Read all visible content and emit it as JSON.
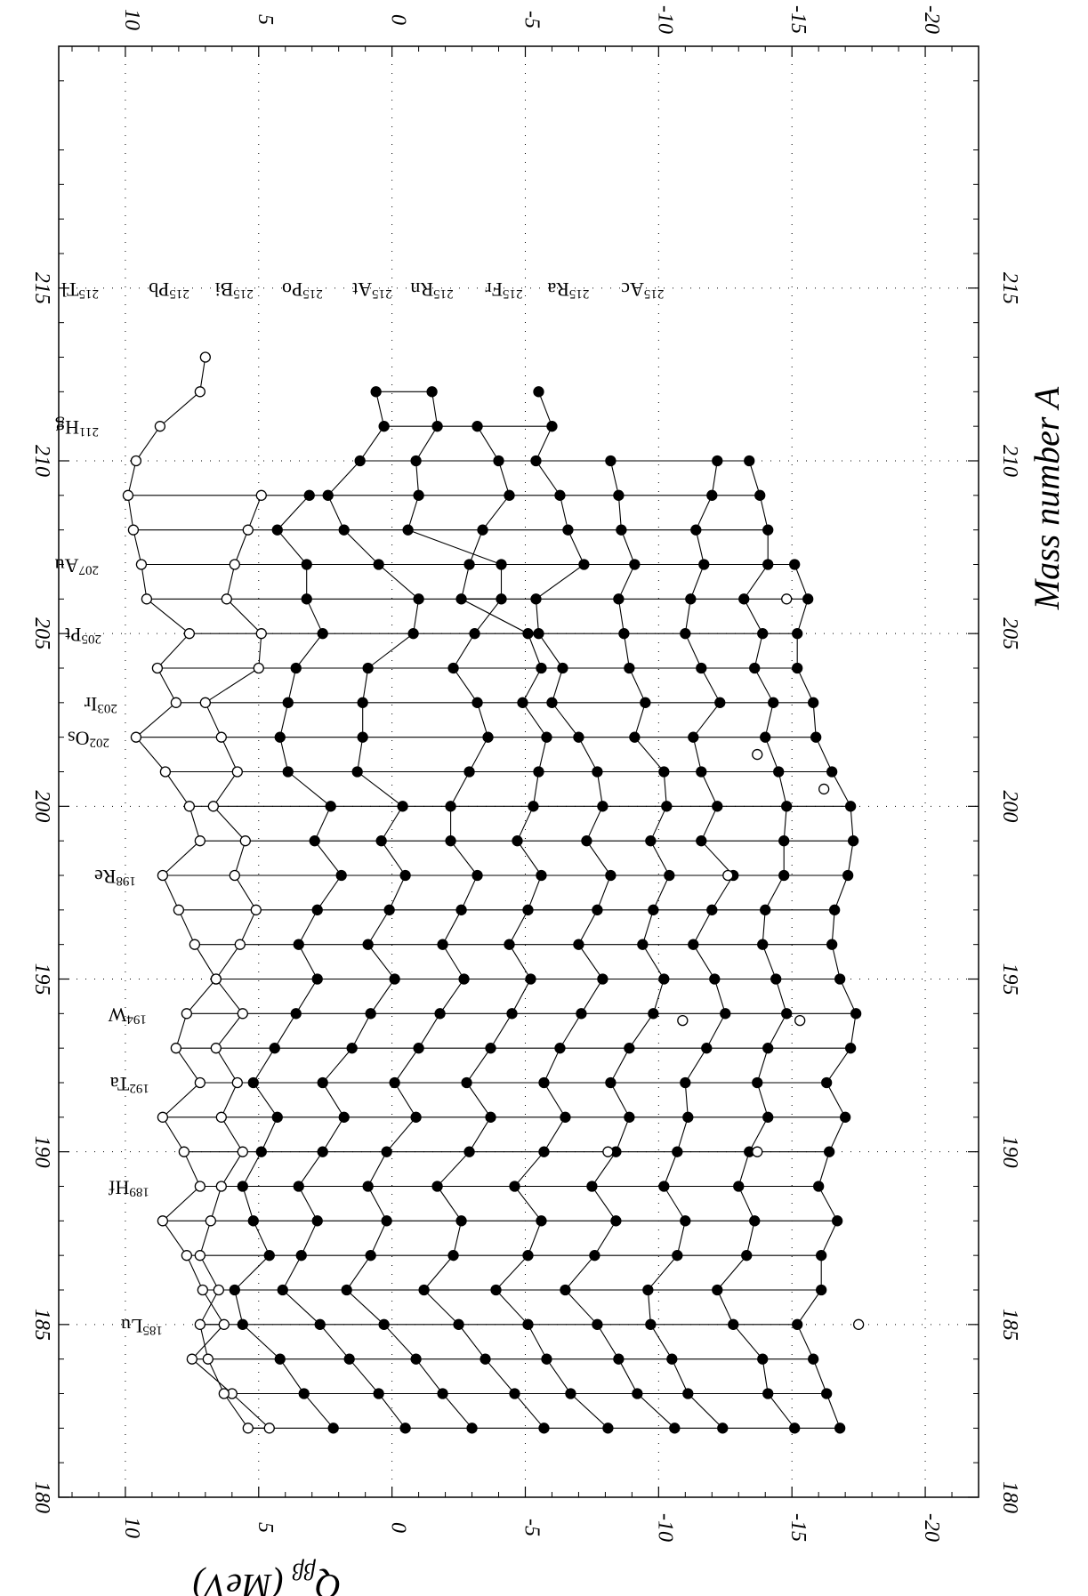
{
  "chart_data": {
    "type": "scatter",
    "title": "",
    "xlabel": "Mass number A",
    "ylabel_symbol": "Q",
    "ylabel_subscript": "ββ",
    "ylabel_unit": " (MeV)",
    "xlim": [
      180,
      222
    ],
    "ylim": [
      -22,
      12.5
    ],
    "x_ticks": [
      180,
      185,
      190,
      195,
      200,
      205,
      210,
      215
    ],
    "y_ticks": [
      10,
      5,
      0,
      -5,
      -10,
      -15,
      -20
    ],
    "y_tick_labels": [
      "10",
      "5",
      "0",
      "-5",
      "-10",
      "-15",
      "-20"
    ],
    "grid": "dotted",
    "orientation": "rotated 90° clockwise",
    "chain_start": 182,
    "chain_end": 216,
    "series": [
      {
        "filled": false,
        "values": [
          4.6,
          6.0,
          7.5,
          6.3,
          7.1,
          7.7,
          8.6,
          7.2,
          7.8,
          8.6,
          7.2,
          8.1,
          7.7,
          6.6,
          7.4,
          8.0,
          8.6,
          7.2,
          7.6,
          8.5,
          9.6,
          8.1,
          8.8,
          7.6,
          9.2,
          9.4,
          9.7,
          9.9,
          9.6,
          8.7,
          7.2,
          7.0
        ]
      },
      {
        "filled": false,
        "values": [
          5.4,
          6.3,
          6.9,
          7.2,
          6.5,
          7.2,
          6.8,
          6.4,
          5.6,
          6.4,
          5.8,
          6.6,
          5.6,
          6.6,
          5.7,
          5.1,
          5.9,
          5.5,
          6.7,
          5.8,
          6.4,
          7.0,
          5.0,
          4.9,
          6.2,
          5.9,
          5.4,
          4.9
        ]
      },
      {
        "filled": true,
        "values": [
          2.2,
          3.3,
          4.2,
          5.6,
          5.9,
          4.6,
          5.2,
          5.6,
          4.9,
          4.3,
          5.2,
          4.4,
          3.6,
          2.8,
          3.5,
          2.8,
          1.9,
          2.9,
          2.3,
          3.9,
          4.2,
          3.9,
          3.6,
          2.6,
          3.2,
          3.2,
          4.3,
          3.1
        ]
      },
      {
        "filled": true,
        "values": [
          -0.5,
          0.5,
          1.6,
          2.7,
          4.1,
          3.4,
          2.8,
          3.5,
          2.6,
          1.8,
          2.6,
          1.5,
          0.8,
          -0.1,
          0.9,
          0.1,
          -0.5,
          0.4,
          -0.4,
          1.3,
          1.1,
          1.1,
          0.9,
          -0.8,
          -1.0,
          0.5,
          1.8,
          2.4,
          1.2,
          0.3,
          0.6
        ]
      },
      {
        "filled": true,
        "values": [
          -3.0,
          -1.9,
          -0.9,
          0.3,
          1.7,
          0.8,
          0.2,
          0.9,
          0.2,
          -0.9,
          -0.1,
          -1.0,
          -1.8,
          -2.7,
          -1.9,
          -2.6,
          -3.2,
          -2.2,
          -2.2,
          -2.9,
          -3.6,
          -3.2,
          -2.3,
          -3.1,
          -4.1,
          -4.1,
          -0.6,
          -1.0,
          -0.9,
          -1.7,
          -1.5
        ]
      },
      {
        "filled": true,
        "values": [
          -5.7,
          -4.6,
          -3.5,
          -2.5,
          -1.2,
          -2.3,
          -2.6,
          -1.7,
          -2.9,
          -3.7,
          -2.8,
          -3.7,
          -4.5,
          -5.2,
          -4.4,
          -5.1,
          -5.6,
          -4.7,
          -5.3,
          -5.5,
          -5.8,
          -4.9,
          -5.6,
          -5.1,
          -2.6,
          -2.9,
          -3.4,
          -4.4,
          -4.0,
          -3.2
        ]
      },
      {
        "filled": true,
        "values": [
          -8.1,
          -6.7,
          -5.8,
          -5.1,
          -3.9,
          -5.1,
          -5.6,
          -4.6,
          -5.7,
          -6.5,
          -5.7,
          -6.3,
          -7.1,
          -7.9,
          -7.0,
          -7.7,
          -8.2,
          -7.3,
          -7.9,
          -7.7,
          -7.0,
          -6.0,
          -6.4,
          -5.5,
          -5.4,
          -7.2,
          -6.6,
          -6.3,
          -5.4,
          -6.0,
          -5.5
        ]
      },
      {
        "filled": true,
        "values": [
          -10.6,
          -9.2,
          -8.5,
          -7.7,
          -6.5,
          -7.6,
          -8.4,
          -7.5,
          -8.4,
          -8.9,
          -8.2,
          -8.9,
          -9.8,
          -10.2,
          -9.4,
          -9.8,
          -10.4,
          -9.7,
          -10.3,
          -10.2,
          -9.1,
          -9.5,
          -8.9,
          -8.7,
          -8.5,
          -9.1,
          -8.6,
          -8.5,
          -8.2
        ]
      },
      {
        "filled": true,
        "values": [
          -12.4,
          -11.1,
          -10.5,
          -9.7,
          -9.6,
          -10.7,
          -11.0,
          -10.2,
          -10.7,
          -11.1,
          -11.0,
          -11.8,
          -12.5,
          -12.1,
          -11.3,
          -12.0,
          -12.8,
          -11.6,
          -12.2,
          -11.6,
          -11.3,
          -12.3,
          -11.6,
          -11.0,
          -11.2,
          -11.7,
          -11.4,
          -12.0,
          -12.2
        ]
      },
      {
        "filled": true,
        "values": [
          -15.1,
          -14.1,
          -13.9,
          -12.8,
          -12.2,
          -13.3,
          -13.6,
          -13.0,
          -13.4,
          -14.1,
          -13.7,
          -14.1,
          -14.8,
          -14.4,
          -13.9,
          -14.0,
          -14.7,
          -14.7,
          -14.8,
          -14.5,
          -14.0,
          -14.3,
          -13.6,
          -13.9,
          -13.2,
          -14.1,
          -14.1,
          -13.8,
          -13.4
        ]
      },
      {
        "filled": true,
        "values": [
          -16.8,
          -16.3,
          -15.8,
          -15.2,
          -16.1,
          -16.1,
          -16.7,
          -16.0,
          -16.4,
          -17.0,
          -16.3,
          -17.2,
          -17.4,
          -16.8,
          -16.5,
          -16.6,
          -17.1,
          -17.3,
          -17.2,
          -16.5,
          -15.9,
          -15.8,
          -15.2,
          -15.2,
          -15.6,
          -15.1
        ]
      }
    ],
    "markers": {
      "series_index": [
        0,
        0,
        1,
        1,
        2,
        2,
        3,
        3,
        4,
        4,
        5,
        5,
        6,
        6,
        7,
        7,
        8,
        8,
        9,
        9,
        10,
        10
      ],
      "x": [
        182,
        183,
        182,
        183,
        184,
        185,
        186,
        187,
        188,
        189,
        190,
        191,
        192,
        193,
        194,
        195,
        196,
        197,
        198,
        199,
        200,
        201
      ]
    },
    "hollow_points": [
      {
        "x": 201.5,
        "y": -13.7
      },
      {
        "x": 200.5,
        "y": -16.2
      },
      {
        "x": 198.0,
        "y": -12.6
      },
      {
        "x": 193.8,
        "y": -10.9
      },
      {
        "x": 193.8,
        "y": -15.3
      },
      {
        "x": 190.0,
        "y": -8.1
      },
      {
        "x": 190.0,
        "y": -13.7
      },
      {
        "x": 185.0,
        "y": -17.5
      },
      {
        "x": 206.0,
        "y": -14.8
      }
    ],
    "isotope_labels": [
      {
        "mass": "185",
        "symbol": "Lu"
      },
      {
        "mass": "189",
        "symbol": "Hf"
      },
      {
        "mass": "192",
        "symbol": "Ta"
      },
      {
        "mass": "194",
        "symbol": "W"
      },
      {
        "mass": "198",
        "symbol": "Re"
      },
      {
        "mass": "202",
        "symbol": "Os"
      },
      {
        "mass": "203",
        "symbol": "Ir"
      },
      {
        "mass": "205",
        "symbol": "Pt"
      },
      {
        "mass": "207",
        "symbol": "Au"
      },
      {
        "mass": "211",
        "symbol": "Hg"
      },
      {
        "mass": "215",
        "symbol": "Tl"
      },
      {
        "mass": "215",
        "symbol": "Pb"
      },
      {
        "mass": "215",
        "symbol": "Bi"
      },
      {
        "mass": "215",
        "symbol": "Po"
      },
      {
        "mass": "215",
        "symbol": "At"
      },
      {
        "mass": "215",
        "symbol": "Rn"
      },
      {
        "mass": "215",
        "symbol": "Fr"
      },
      {
        "mass": "215",
        "symbol": "Ra"
      },
      {
        "mass": "215",
        "symbol": "Ac"
      }
    ]
  }
}
